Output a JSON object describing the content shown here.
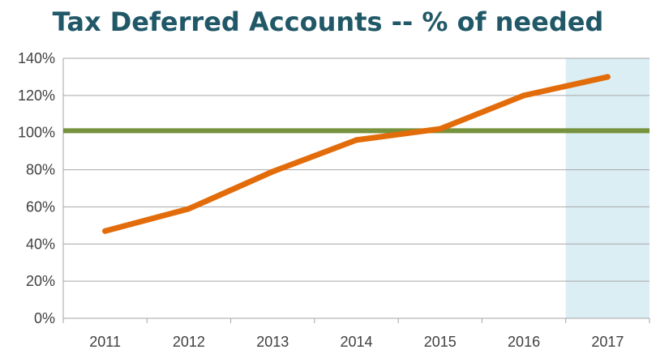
{
  "chart_data": {
    "type": "line",
    "title": "Tax Deferred Accounts -- % of needed",
    "categories": [
      "2011",
      "2012",
      "2013",
      "2014",
      "2015",
      "2016",
      "2017"
    ],
    "series": [
      {
        "name": "Tax Deferred Accounts",
        "values": [
          47,
          59,
          79,
          96,
          102,
          120,
          130
        ]
      }
    ],
    "reference_line": {
      "value": 101
    },
    "highlight_category": "2017",
    "ylim": [
      0,
      140
    ],
    "yticks": [
      0,
      20,
      40,
      60,
      80,
      100,
      120,
      140
    ],
    "ytick_labels": [
      "0%",
      "20%",
      "40%",
      "60%",
      "80%",
      "100%",
      "120%",
      "140%"
    ],
    "xlabel": "",
    "ylabel": "",
    "grid": true,
    "colors": {
      "series": "#E36C0A",
      "reference": "#76923C",
      "highlight": "#DBEEF4",
      "grid": "#A6A6A6",
      "title": "#215868"
    }
  }
}
